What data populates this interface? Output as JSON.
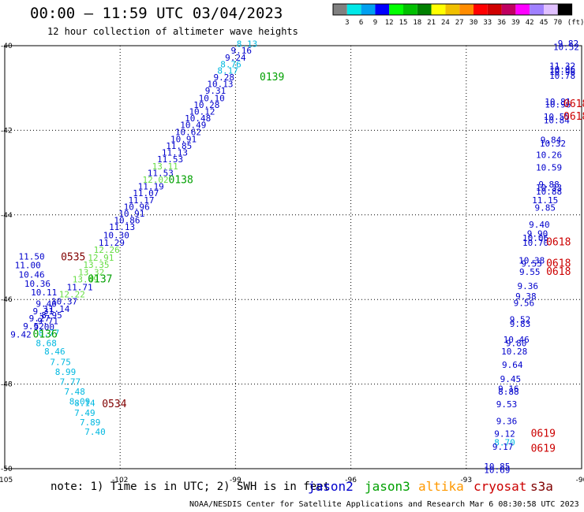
{
  "header": {
    "title": "00:00 – 11:59 UTC 03/04/2023",
    "subtitle": "12 hour collection of altimeter wave heights"
  },
  "colorbar": {
    "unit": "(ft)",
    "ticks": [
      "3",
      "6",
      "9",
      "12",
      "15",
      "18",
      "21",
      "24",
      "27",
      "30",
      "33",
      "36",
      "39",
      "42",
      "45",
      "70"
    ],
    "colors": [
      "#808080",
      "#00e8e8",
      "#00a0f0",
      "#0000ff",
      "#00ff00",
      "#00c000",
      "#008000",
      "#ffff00",
      "#f0c000",
      "#ff8c00",
      "#ff0000",
      "#d00000",
      "#c00060",
      "#ff00ff",
      "#a080ff",
      "#e0c0ff",
      "#000000"
    ]
  },
  "note": "note: 1) Time is in UTC; 2) SWH is in feet",
  "satellites": [
    {
      "name": "jason2",
      "color": "#0000cc"
    },
    {
      "name": "jason3",
      "color": "#00a000"
    },
    {
      "name": "altika",
      "color": "#ff9900"
    },
    {
      "name": "cryosat",
      "color": "#cc0000"
    },
    {
      "name": "s3a",
      "color": "#800000"
    }
  ],
  "footer": "NOAA/NESDIS Center for Satellite Applications and Research   Mar  6 08:30:58 UTC 2023",
  "chart_data": {
    "type": "scatter",
    "xlim": [
      -105,
      -90
    ],
    "ylim": [
      -50,
      -40
    ],
    "xticks": [
      "-105",
      "-102",
      "-99",
      "-96",
      "-93",
      "-90"
    ],
    "yticks": [
      "-40",
      "-42",
      "-44",
      "-46",
      "-48",
      "-50"
    ],
    "grid": true,
    "colors": {
      "jason2": "#0000cc",
      "jason3": "#00a000",
      "altika": "#ff9900",
      "cryosat": "#cc0000",
      "s3a": "#800000",
      "gray": "#808080",
      "cyan": "#00b8e0",
      "lgreen": "#66dd44",
      "blue": "#0000cc"
    },
    "points": [
      {
        "x": -98.7,
        "y": -40.03,
        "label": "8.13",
        "c": "cyan"
      },
      {
        "x": -98.85,
        "y": -40.19,
        "label": "9.16",
        "c": "blue"
      },
      {
        "x": -99.0,
        "y": -40.35,
        "label": "9.24",
        "c": "blue"
      },
      {
        "x": -99.12,
        "y": -40.51,
        "label": "8.76",
        "c": "cyan"
      },
      {
        "x": -99.2,
        "y": -40.66,
        "label": "8.17",
        "c": "cyan"
      },
      {
        "x": -99.3,
        "y": -40.82,
        "label": "9.28",
        "c": "blue"
      },
      {
        "x": -99.4,
        "y": -40.98,
        "label": "10.13",
        "c": "blue"
      },
      {
        "x": -99.52,
        "y": -41.14,
        "label": "9.31",
        "c": "blue"
      },
      {
        "x": -99.62,
        "y": -41.31,
        "label": "10.10",
        "c": "blue"
      },
      {
        "x": -99.75,
        "y": -41.47,
        "label": "10.28",
        "c": "blue"
      },
      {
        "x": -99.87,
        "y": -41.63,
        "label": "10.12",
        "c": "blue"
      },
      {
        "x": -99.98,
        "y": -41.79,
        "label": "10.48",
        "c": "blue"
      },
      {
        "x": -100.1,
        "y": -41.95,
        "label": "10.49",
        "c": "blue"
      },
      {
        "x": -100.23,
        "y": -42.11,
        "label": "10.62",
        "c": "blue"
      },
      {
        "x": -100.35,
        "y": -42.28,
        "label": "10.91",
        "c": "blue"
      },
      {
        "x": -100.47,
        "y": -42.44,
        "label": "11.85",
        "c": "blue"
      },
      {
        "x": -100.58,
        "y": -42.6,
        "label": "11.13",
        "c": "blue"
      },
      {
        "x": -100.7,
        "y": -42.76,
        "label": "11.53",
        "c": "blue"
      },
      {
        "x": -100.83,
        "y": -42.92,
        "label": "13.11",
        "c": "lgreen"
      },
      {
        "x": -100.95,
        "y": -43.08,
        "label": "11.53",
        "c": "blue"
      },
      {
        "x": -101.08,
        "y": -43.24,
        "label": "12.02",
        "c": "lgreen"
      },
      {
        "x": -101.2,
        "y": -43.4,
        "label": "11.19",
        "c": "blue"
      },
      {
        "x": -101.33,
        "y": -43.56,
        "label": "11.07",
        "c": "blue"
      },
      {
        "x": -101.45,
        "y": -43.72,
        "label": "11.17",
        "c": "blue"
      },
      {
        "x": -101.57,
        "y": -43.88,
        "label": "10.96",
        "c": "blue"
      },
      {
        "x": -101.7,
        "y": -44.04,
        "label": "10.91",
        "c": "blue"
      },
      {
        "x": -101.82,
        "y": -44.2,
        "label": "10.86",
        "c": "blue"
      },
      {
        "x": -101.95,
        "y": -44.36,
        "label": "11.13",
        "c": "blue"
      },
      {
        "x": -102.1,
        "y": -44.55,
        "label": "10.30",
        "c": "blue"
      },
      {
        "x": -102.22,
        "y": -44.73,
        "label": "11.29",
        "c": "blue"
      },
      {
        "x": -102.35,
        "y": -44.9,
        "label": "12.26",
        "c": "lgreen"
      },
      {
        "x": -102.5,
        "y": -45.08,
        "label": "12.91",
        "c": "lgreen"
      },
      {
        "x": -102.62,
        "y": -45.25,
        "label": "13.35",
        "c": "lgreen"
      },
      {
        "x": -102.75,
        "y": -45.43,
        "label": "13.32",
        "c": "lgreen"
      },
      {
        "x": -102.9,
        "y": -45.6,
        "label": "13.49",
        "c": "lgreen"
      },
      {
        "x": -103.05,
        "y": -45.78,
        "label": "11.71",
        "c": "blue"
      },
      {
        "x": -103.25,
        "y": -45.95,
        "label": "12.22",
        "c": "lgreen"
      },
      {
        "x": -103.45,
        "y": -46.12,
        "label": "10.37",
        "c": "blue"
      },
      {
        "x": -103.65,
        "y": -46.29,
        "label": "11.14",
        "c": "blue"
      },
      {
        "x": -103.78,
        "y": -46.44,
        "label": "8.95",
        "c": "blue"
      },
      {
        "x": -103.88,
        "y": -46.58,
        "label": "9.71",
        "c": "blue"
      },
      {
        "x": -103.98,
        "y": -46.72,
        "label": "9.00",
        "c": "blue"
      },
      {
        "x": -104.3,
        "y": -45.06,
        "label": "11.50",
        "c": "blue"
      },
      {
        "x": -104.4,
        "y": -45.26,
        "label": "11.00",
        "c": "blue"
      },
      {
        "x": -104.3,
        "y": -45.48,
        "label": "10.46",
        "c": "blue"
      },
      {
        "x": -104.15,
        "y": -45.7,
        "label": "10.36",
        "c": "blue"
      },
      {
        "x": -103.98,
        "y": -45.9,
        "label": "10.11",
        "c": "blue"
      },
      {
        "x": -103.92,
        "y": -46.17,
        "label": "9.40",
        "c": "blue"
      },
      {
        "x": -104.0,
        "y": -46.35,
        "label": "9.31",
        "c": "blue"
      },
      {
        "x": -104.1,
        "y": -46.52,
        "label": "9.27",
        "c": "blue"
      },
      {
        "x": -103.85,
        "y": -46.86,
        "label": "8.77",
        "c": "cyan"
      },
      {
        "x": -104.25,
        "y": -46.7,
        "label": "9.52",
        "c": "blue"
      },
      {
        "x": -104.58,
        "y": -46.9,
        "label": "9.42",
        "c": "blue"
      },
      {
        "x": -103.92,
        "y": -47.1,
        "label": "8.68",
        "c": "cyan"
      },
      {
        "x": -103.7,
        "y": -47.3,
        "label": "8.46",
        "c": "cyan"
      },
      {
        "x": -103.55,
        "y": -47.55,
        "label": "7.75",
        "c": "cyan"
      },
      {
        "x": -103.42,
        "y": -47.78,
        "label": "8.99",
        "c": "cyan"
      },
      {
        "x": -103.3,
        "y": -48.02,
        "label": "7.77",
        "c": "cyan"
      },
      {
        "x": -103.18,
        "y": -48.25,
        "label": "7.48",
        "c": "cyan"
      },
      {
        "x": -103.05,
        "y": -48.48,
        "label": "8.09",
        "c": "cyan"
      },
      {
        "x": -102.92,
        "y": -48.52,
        "label": "8.14",
        "c": "cyan"
      },
      {
        "x": -102.92,
        "y": -48.75,
        "label": "7.49",
        "c": "cyan"
      },
      {
        "x": -102.78,
        "y": -48.98,
        "label": "7.89",
        "c": "cyan"
      },
      {
        "x": -102.65,
        "y": -49.2,
        "label": "7.40",
        "c": "cyan"
      },
      {
        "x": -90.35,
        "y": -40.02,
        "label": "9.82",
        "c": "blue"
      },
      {
        "x": -90.4,
        "y": -40.1,
        "label": "10.52",
        "c": "blue"
      },
      {
        "x": -90.5,
        "y": -40.55,
        "label": "11.32",
        "c": "blue"
      },
      {
        "x": -90.5,
        "y": -40.63,
        "label": "10.96",
        "c": "blue"
      },
      {
        "x": -90.5,
        "y": -40.69,
        "label": "10.96",
        "c": "blue"
      },
      {
        "x": -90.5,
        "y": -40.78,
        "label": "10.78",
        "c": "blue"
      },
      {
        "x": -90.62,
        "y": -41.4,
        "label": "10.81",
        "c": "blue"
      },
      {
        "x": -90.62,
        "y": -41.46,
        "label": "10.96",
        "c": "blue"
      },
      {
        "x": -90.65,
        "y": -41.75,
        "label": "10.55",
        "c": "blue"
      },
      {
        "x": -90.65,
        "y": -41.83,
        "label": "10.84",
        "c": "blue"
      },
      {
        "x": -90.8,
        "y": -42.3,
        "label": "9.84",
        "c": "blue"
      },
      {
        "x": -90.75,
        "y": -42.38,
        "label": "10.32",
        "c": "blue"
      },
      {
        "x": -90.85,
        "y": -42.65,
        "label": "10.26",
        "c": "blue"
      },
      {
        "x": -90.85,
        "y": -42.95,
        "label": "10.59",
        "c": "blue"
      },
      {
        "x": -90.85,
        "y": -43.35,
        "label": "9.88",
        "c": "blue"
      },
      {
        "x": -90.85,
        "y": -43.43,
        "label": "10.33",
        "c": "blue"
      },
      {
        "x": -90.85,
        "y": -43.52,
        "label": "10.88",
        "c": "blue"
      },
      {
        "x": -90.95,
        "y": -43.72,
        "label": "11.15",
        "c": "blue"
      },
      {
        "x": -90.95,
        "y": -43.9,
        "label": "9.85",
        "c": "blue"
      },
      {
        "x": -91.1,
        "y": -44.3,
        "label": "9.40",
        "c": "blue"
      },
      {
        "x": -91.15,
        "y": -44.52,
        "label": "9.90",
        "c": "blue"
      },
      {
        "x": -91.2,
        "y": -44.62,
        "label": "10.06",
        "c": "blue"
      },
      {
        "x": -91.2,
        "y": -44.73,
        "label": "10.70",
        "c": "blue"
      },
      {
        "x": -91.3,
        "y": -45.15,
        "label": "10.38",
        "c": "blue"
      },
      {
        "x": -91.3,
        "y": -45.22,
        "label": "9.55",
        "c": "blue"
      },
      {
        "x": -91.35,
        "y": -45.42,
        "label": "9.55",
        "c": "blue"
      },
      {
        "x": -91.4,
        "y": -45.75,
        "label": "9.36",
        "c": "blue"
      },
      {
        "x": -91.45,
        "y": -46.0,
        "label": "9.38",
        "c": "blue"
      },
      {
        "x": -91.5,
        "y": -46.15,
        "label": "9.56",
        "c": "blue"
      },
      {
        "x": -91.6,
        "y": -46.55,
        "label": "9.52",
        "c": "blue"
      },
      {
        "x": -91.6,
        "y": -46.65,
        "label": "9.83",
        "c": "blue"
      },
      {
        "x": -91.7,
        "y": -47.02,
        "label": "10.46",
        "c": "blue"
      },
      {
        "x": -91.7,
        "y": -47.1,
        "label": "9.80",
        "c": "blue"
      },
      {
        "x": -91.75,
        "y": -47.3,
        "label": "10.28",
        "c": "blue"
      },
      {
        "x": -91.8,
        "y": -47.62,
        "label": "9.64",
        "c": "blue"
      },
      {
        "x": -91.85,
        "y": -47.95,
        "label": "9.45",
        "c": "blue"
      },
      {
        "x": -91.9,
        "y": -48.18,
        "label": "9.16",
        "c": "blue"
      },
      {
        "x": -91.9,
        "y": -48.25,
        "label": "8.88",
        "c": "blue"
      },
      {
        "x": -91.95,
        "y": -48.55,
        "label": "9.53",
        "c": "blue"
      },
      {
        "x": -91.95,
        "y": -48.95,
        "label": "9.36",
        "c": "blue"
      },
      {
        "x": -92.0,
        "y": -49.25,
        "label": "9.12",
        "c": "blue"
      },
      {
        "x": -92.0,
        "y": -49.45,
        "label": "8.70",
        "c": "cyan"
      },
      {
        "x": -92.05,
        "y": -49.55,
        "label": "9.17",
        "c": "blue"
      },
      {
        "x": -92.2,
        "y": -50.02,
        "label": "10.85",
        "c": "blue"
      },
      {
        "x": -92.2,
        "y": -50.1,
        "label": "10.69",
        "c": "blue"
      }
    ],
    "times": [
      {
        "x": -98.05,
        "y": -40.82,
        "label": "0139",
        "c": "jason3"
      },
      {
        "x": -100.42,
        "y": -43.25,
        "label": "0138",
        "c": "jason3"
      },
      {
        "x": -102.52,
        "y": -45.6,
        "label": "0137",
        "c": "jason3"
      },
      {
        "x": -103.95,
        "y": -46.9,
        "label": "0136",
        "c": "jason3"
      },
      {
        "x": -103.22,
        "y": -45.07,
        "label": "0535",
        "c": "s3a"
      },
      {
        "x": -102.15,
        "y": -48.55,
        "label": "0534",
        "c": "s3a"
      },
      {
        "x": -90.15,
        "y": -41.45,
        "label": "0618",
        "c": "cryosat"
      },
      {
        "x": -90.15,
        "y": -41.75,
        "label": "0618",
        "c": "cryosat"
      },
      {
        "x": -90.6,
        "y": -44.72,
        "label": "0618",
        "c": "cryosat"
      },
      {
        "x": -90.6,
        "y": -45.22,
        "label": "0618",
        "c": "cryosat"
      },
      {
        "x": -90.6,
        "y": -45.42,
        "label": "0618",
        "c": "cryosat"
      },
      {
        "x": -91.0,
        "y": -49.25,
        "label": "0619",
        "c": "cryosat"
      },
      {
        "x": -91.0,
        "y": -49.6,
        "label": "0619",
        "c": "cryosat"
      }
    ]
  }
}
